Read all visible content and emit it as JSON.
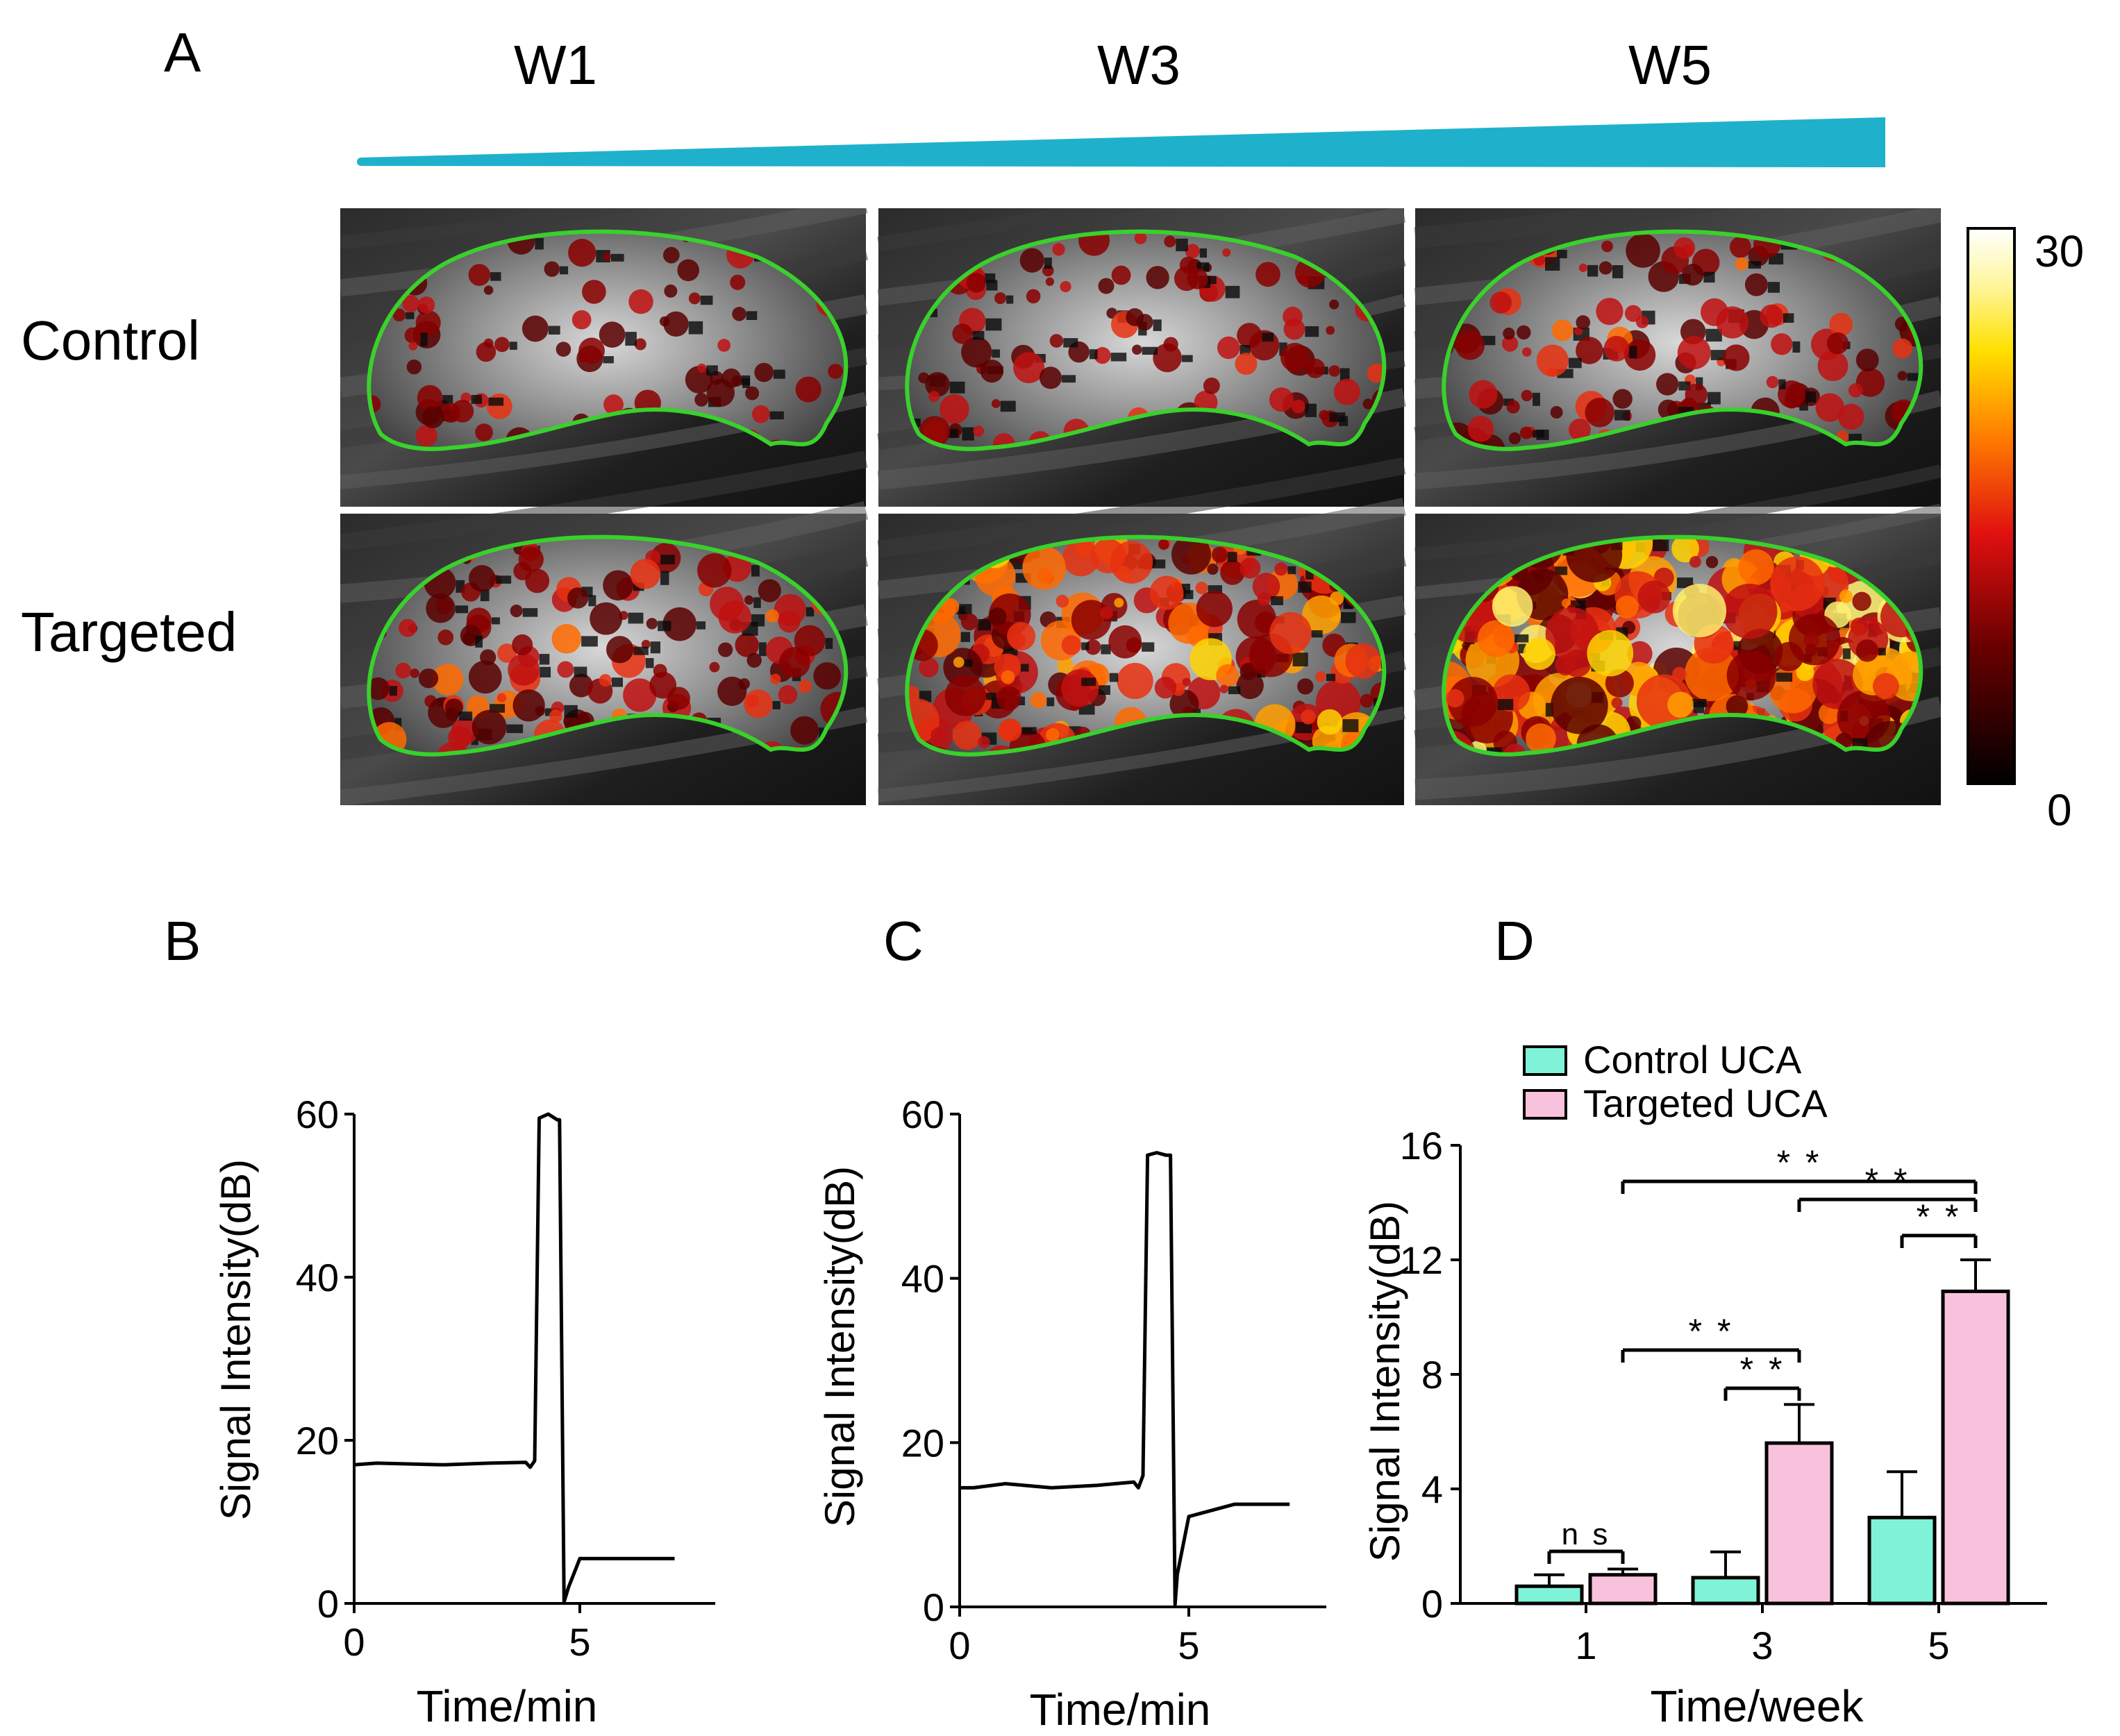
{
  "panel_a": {
    "letter": "A",
    "columns": [
      "W1",
      "W3",
      "W5"
    ],
    "rows": [
      "Control",
      "Targeted"
    ],
    "colorbar": {
      "max_label": "30",
      "min_label": "0"
    },
    "colors": {
      "wedge": "#1fb1cc",
      "outline": "#39d12b"
    },
    "heat_levels": [
      [
        0.15,
        0.22,
        0.3
      ],
      [
        0.3,
        0.55,
        0.85
      ]
    ]
  },
  "panel_b": {
    "letter": "B"
  },
  "panel_c": {
    "letter": "C"
  },
  "panel_d": {
    "letter": "D"
  },
  "chart_data": [
    {
      "panel": "B",
      "type": "line",
      "xlabel": "Time/min",
      "ylabel": "Signal Intensity(dB)",
      "xticks": [
        "0",
        "5"
      ],
      "yticks": [
        "0",
        "20",
        "40",
        "60"
      ],
      "xlim": [
        0,
        8
      ],
      "ylim": [
        0,
        60
      ],
      "series": [
        {
          "x": [
            0,
            0.5,
            2,
            3,
            3.8,
            3.9,
            4.0,
            4.1,
            4.3,
            4.5,
            4.55,
            4.65,
            4.75,
            5,
            7.1
          ],
          "y": [
            17,
            17.2,
            17,
            17.2,
            17.3,
            16.7,
            17.5,
            59.5,
            60,
            59.3,
            59.3,
            0.2,
            2,
            5.5,
            5.5
          ]
        }
      ]
    },
    {
      "panel": "C",
      "type": "line",
      "xlabel": "Time/min",
      "ylabel": "Signal Intensity(dB)",
      "xticks": [
        "0",
        "5"
      ],
      "yticks": [
        "0",
        "20",
        "40",
        "60"
      ],
      "xlim": [
        0,
        8
      ],
      "ylim": [
        0,
        60
      ],
      "series": [
        {
          "x": [
            0,
            0.3,
            1,
            2,
            3,
            3.8,
            3.9,
            4.0,
            4.1,
            4.3,
            4.5,
            4.6,
            4.7,
            4.75,
            5,
            6,
            7.2
          ],
          "y": [
            14.5,
            14.5,
            15,
            14.5,
            14.8,
            15.2,
            14.5,
            16,
            55,
            55.3,
            55,
            55,
            0.3,
            4,
            11,
            12.5,
            12.5
          ]
        }
      ]
    },
    {
      "panel": "D",
      "type": "bar",
      "xlabel": "Time/week",
      "ylabel": "Signal Intensity(dB)",
      "categories": [
        "1",
        "3",
        "5"
      ],
      "yticks": [
        "0",
        "4",
        "8",
        "12",
        "16"
      ],
      "ylim": [
        0,
        16
      ],
      "series": [
        {
          "name": "Control UCA",
          "color": "#7ff2d8",
          "values": [
            0.6,
            0.9,
            3.0
          ],
          "errors": [
            0.4,
            0.9,
            1.6
          ]
        },
        {
          "name": "Targeted UCA",
          "color": "#f9c2dc",
          "values": [
            1.0,
            5.6,
            10.9
          ],
          "errors": [
            0.2,
            1.35,
            1.1
          ]
        }
      ],
      "annotations": [
        {
          "text": "n s",
          "from": "1-control",
          "to": "1-targeted"
        },
        {
          "text": "* *",
          "from": "3-control",
          "to": "3-targeted"
        },
        {
          "text": "* *",
          "from": "1-targeted",
          "to": "3-targeted"
        },
        {
          "text": "* *",
          "from": "5-control",
          "to": "5-targeted"
        },
        {
          "text": "* *",
          "from": "3-targeted",
          "to": "5-targeted"
        },
        {
          "text": "* *",
          "from": "1-targeted",
          "to": "5-targeted"
        }
      ]
    }
  ]
}
